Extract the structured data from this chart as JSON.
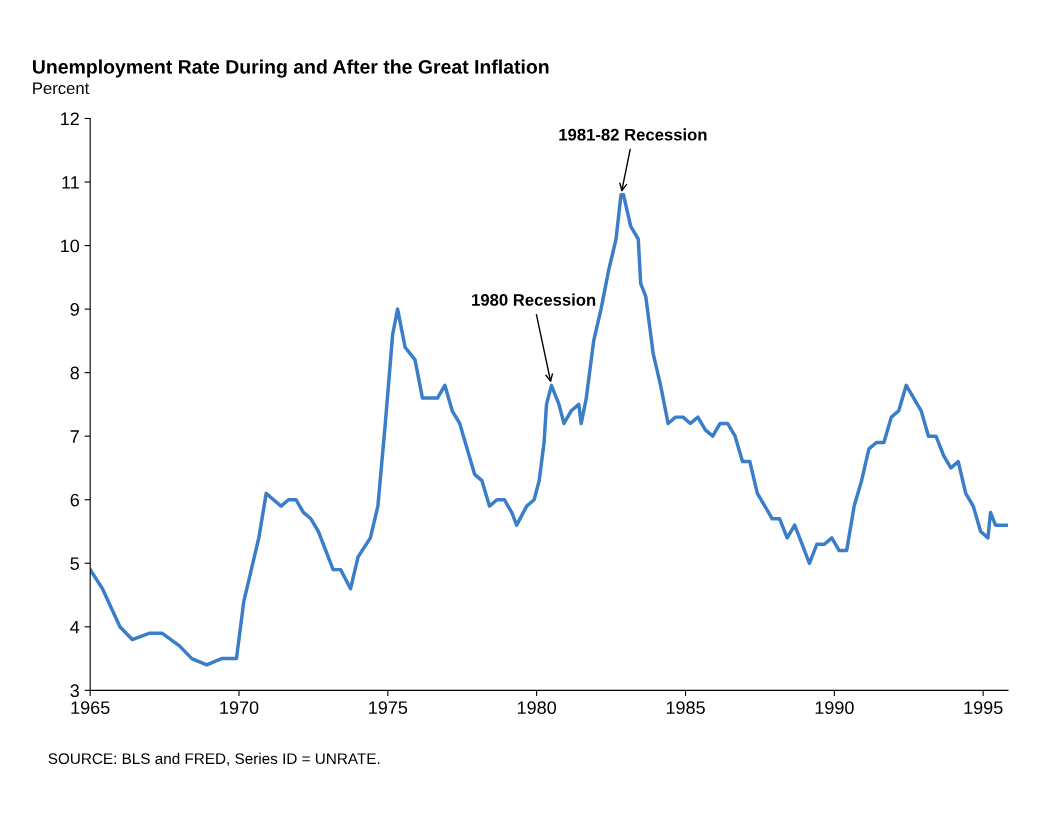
{
  "chart_data": {
    "type": "line",
    "title": "Unemployment Rate During and After the Great Inflation",
    "ylabel": "Percent",
    "x": [
      "1965-01",
      "1965-06",
      "1966-01",
      "1966-06",
      "1967-01",
      "1967-06",
      "1968-01",
      "1968-06",
      "1968-12",
      "1969-06",
      "1969-12",
      "1970-03",
      "1970-06",
      "1970-09",
      "1970-12",
      "1971-03",
      "1971-06",
      "1971-09",
      "1971-12",
      "1972-03",
      "1972-06",
      "1972-09",
      "1972-12",
      "1973-03",
      "1973-06",
      "1973-10",
      "1974-01",
      "1974-06",
      "1974-09",
      "1974-12",
      "1975-03",
      "1975-05",
      "1975-08",
      "1975-12",
      "1976-03",
      "1976-06",
      "1976-09",
      "1976-12",
      "1977-03",
      "1977-06",
      "1977-09",
      "1977-12",
      "1978-03",
      "1978-06",
      "1978-09",
      "1978-12",
      "1979-03",
      "1979-05",
      "1979-09",
      "1979-12",
      "1980-02",
      "1980-04",
      "1980-05",
      "1980-07",
      "1980-10",
      "1980-12",
      "1981-03",
      "1981-06",
      "1981-07",
      "1981-09",
      "1981-12",
      "1982-03",
      "1982-06",
      "1982-09",
      "1982-11",
      "1982-12",
      "1983-03",
      "1983-06",
      "1983-07",
      "1983-09",
      "1983-12",
      "1984-03",
      "1984-06",
      "1984-09",
      "1984-12",
      "1985-03",
      "1985-06",
      "1985-09",
      "1985-12",
      "1986-03",
      "1986-06",
      "1986-09",
      "1986-12",
      "1987-03",
      "1987-06",
      "1987-09",
      "1987-12",
      "1988-03",
      "1988-06",
      "1988-09",
      "1988-12",
      "1989-03",
      "1989-06",
      "1989-09",
      "1989-12",
      "1990-03",
      "1990-06",
      "1990-09",
      "1990-12",
      "1991-03",
      "1991-06",
      "1991-09",
      "1991-12",
      "1992-03",
      "1992-06",
      "1992-09",
      "1992-12",
      "1993-03",
      "1993-06",
      "1993-09",
      "1993-12",
      "1994-03",
      "1994-06",
      "1994-09",
      "1994-12",
      "1995-03",
      "1995-04",
      "1995-06",
      "1995-09",
      "1995-11"
    ],
    "series": [
      {
        "color": "#3a7dc9",
        "values": [
          4.9,
          4.6,
          4.0,
          3.8,
          3.9,
          3.9,
          3.7,
          3.5,
          3.4,
          3.5,
          3.5,
          4.4,
          4.9,
          5.4,
          6.1,
          6.0,
          5.9,
          6.0,
          6.0,
          5.8,
          5.7,
          5.5,
          5.2,
          4.9,
          4.9,
          4.6,
          5.1,
          5.4,
          5.9,
          7.2,
          8.6,
          9.0,
          8.4,
          8.2,
          7.6,
          7.6,
          7.6,
          7.8,
          7.4,
          7.2,
          6.8,
          6.4,
          6.3,
          5.9,
          6.0,
          6.0,
          5.8,
          5.6,
          5.9,
          6.0,
          6.3,
          6.9,
          7.5,
          7.8,
          7.5,
          7.2,
          7.4,
          7.5,
          7.2,
          7.6,
          8.5,
          9.0,
          9.6,
          10.1,
          10.8,
          10.8,
          10.3,
          10.1,
          9.4,
          9.2,
          8.3,
          7.8,
          7.2,
          7.3,
          7.3,
          7.2,
          7.3,
          7.1,
          7.0,
          7.2,
          7.2,
          7.0,
          6.6,
          6.6,
          6.1,
          5.9,
          5.7,
          5.7,
          5.4,
          5.6,
          5.3,
          5.0,
          5.3,
          5.3,
          5.4,
          5.2,
          5.2,
          5.9,
          6.3,
          6.8,
          6.9,
          6.9,
          7.3,
          7.4,
          7.8,
          7.6,
          7.4,
          7.0,
          7.0,
          6.7,
          6.5,
          6.6,
          6.1,
          5.9,
          5.5,
          5.4,
          5.8,
          5.6,
          5.6,
          5.6
        ]
      }
    ],
    "xlim": [
      "1965-01",
      "1995-11"
    ],
    "xticks": [
      {
        "value": "1965-01",
        "label": "1965"
      },
      {
        "value": "1970-01",
        "label": "1970"
      },
      {
        "value": "1975-01",
        "label": "1975"
      },
      {
        "value": "1980-01",
        "label": "1980"
      },
      {
        "value": "1985-01",
        "label": "1985"
      },
      {
        "value": "1990-01",
        "label": "1990"
      },
      {
        "value": "1995-01",
        "label": "1995"
      }
    ],
    "ylim": [
      3,
      12
    ],
    "yticks": [
      3,
      4,
      5,
      6,
      7,
      8,
      9,
      10,
      11,
      12
    ],
    "grid": false,
    "legend": false,
    "annotations": [
      {
        "text": "1981-82 Recession",
        "x": "1982-11",
        "y": 10.8
      },
      {
        "text": "1980 Recession",
        "x": "1980-07",
        "y": 7.8
      },
      "SOURCE: BLS and FRED, Series ID = UNRATE."
    ]
  }
}
